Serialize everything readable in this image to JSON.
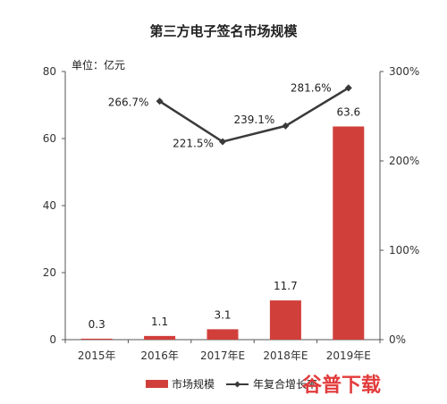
{
  "chart_data": {
    "type": "bar+line",
    "title": "第三方电子签名市场规模",
    "unit_label": "单位：亿元",
    "categories": [
      "2015年",
      "2016年",
      "2017年E",
      "2018年E",
      "2019年E"
    ],
    "series": [
      {
        "name": "市场规模",
        "type": "bar",
        "axis": "left",
        "color": "#d13f3b",
        "values": [
          0.3,
          1.1,
          3.1,
          11.7,
          63.6
        ],
        "labels": [
          "0.3",
          "1.1",
          "3.1",
          "11.7",
          "63.6"
        ]
      },
      {
        "name": "年复合增长率",
        "type": "line",
        "axis": "right",
        "color": "#3a3a3a",
        "values": [
          null,
          266.7,
          221.5,
          239.1,
          281.6
        ],
        "labels": [
          "",
          "266.7%",
          "221.5%",
          "239.1%",
          "281.6%"
        ]
      }
    ],
    "y_left": {
      "min": 0,
      "max": 80,
      "ticks": [
        "0",
        "20",
        "40",
        "60",
        "80"
      ]
    },
    "y_right": {
      "min": 0,
      "max": 300,
      "ticks": [
        "0%",
        "100%",
        "200%",
        "300%"
      ]
    },
    "grid": false,
    "legend_position": "bottom"
  },
  "watermark": "谷普下载"
}
